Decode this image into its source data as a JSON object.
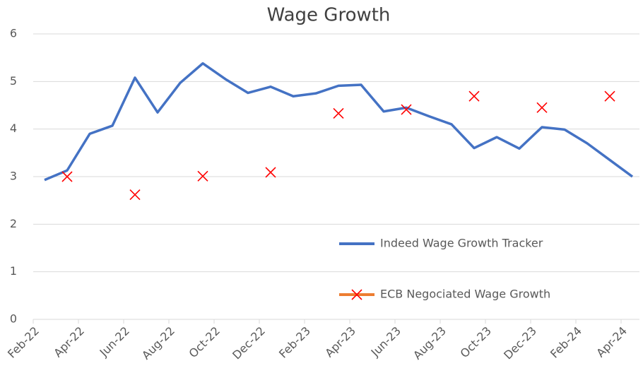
{
  "chart_data": {
    "type": "line",
    "title": "Wage Growth",
    "categories": [
      "Feb-22",
      null,
      "Apr-22",
      null,
      "Jun-22",
      null,
      "Aug-22",
      null,
      "Oct-22",
      null,
      "Dec-22",
      null,
      "Feb-23",
      null,
      "Apr-23",
      null,
      "Jun-23",
      null,
      "Aug-23",
      null,
      "Oct-23",
      null,
      "Dec-23",
      null,
      "Feb-24",
      null,
      "Apr-24"
    ],
    "series": [
      {
        "name": "Indeed Wage Growth Tracker",
        "color": "#4472c4",
        "style": "line",
        "values": [
          2.93,
          3.13,
          3.9,
          4.07,
          5.08,
          4.35,
          4.97,
          5.38,
          5.05,
          4.76,
          4.89,
          4.69,
          4.75,
          4.91,
          4.93,
          4.37,
          4.45,
          4.27,
          4.1,
          3.6,
          3.83,
          3.59,
          4.04,
          3.99,
          3.7,
          3.35,
          3.0
        ]
      },
      {
        "name": "ECB Negociated Wage Growth",
        "color": "#ed7d31",
        "marker_color": "#ff0000",
        "style": "markers",
        "values": [
          null,
          3.0,
          null,
          null,
          2.62,
          null,
          null,
          3.01,
          null,
          null,
          3.09,
          null,
          null,
          4.33,
          null,
          null,
          4.41,
          null,
          null,
          4.69,
          null,
          null,
          4.45,
          null,
          null,
          4.69,
          null
        ]
      }
    ],
    "ylim": [
      0,
      6
    ],
    "yticks": [
      0,
      1,
      2,
      3,
      4,
      5,
      6
    ],
    "grid": true,
    "legend": "lower right"
  }
}
